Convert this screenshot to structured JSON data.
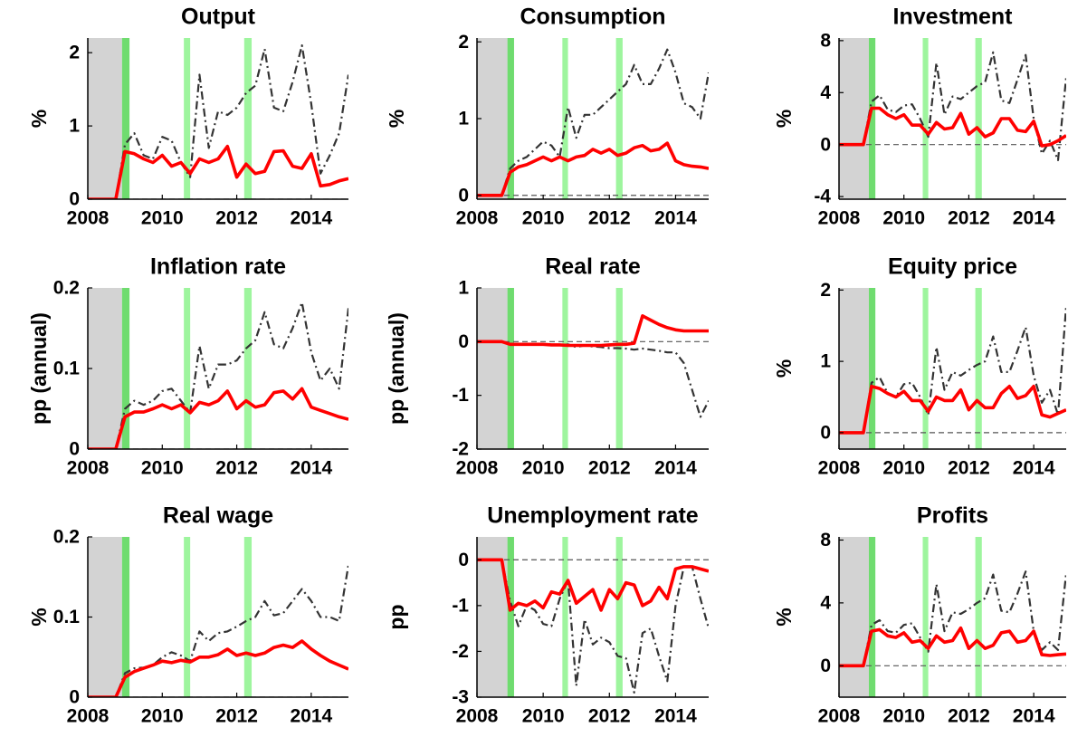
{
  "shaded": [
    {
      "from": 2008,
      "to": 2008.92,
      "color": "#d3d3d3"
    },
    {
      "from": 2008.92,
      "to": 2009.12,
      "color": "#6fdc6f"
    },
    {
      "from": 2010.58,
      "to": 2010.75,
      "color": "#9ef59e"
    },
    {
      "from": 2012.2,
      "to": 2012.4,
      "color": "#9ef59e"
    }
  ],
  "chart_data": [
    {
      "type": "line",
      "title": "Output",
      "ylabel": "%",
      "xlim": [
        2008,
        2015
      ],
      "xticks": [
        2008,
        2010,
        2012,
        2014
      ],
      "ylim": [
        0,
        2.2
      ],
      "yticks": [
        0,
        1,
        2
      ],
      "hline": 0,
      "x": [
        2008,
        2008.25,
        2008.5,
        2008.75,
        2009,
        2009.25,
        2009.5,
        2009.75,
        2010,
        2010.25,
        2010.5,
        2010.75,
        2011,
        2011.25,
        2011.5,
        2011.75,
        2012,
        2012.25,
        2012.5,
        2012.75,
        2013,
        2013.25,
        2013.5,
        2013.75,
        2014,
        2014.25,
        2014.5,
        2014.75,
        2015
      ],
      "series": [
        {
          "color": "#ff0000",
          "style": "solid",
          "values": [
            0,
            0,
            0,
            0,
            0.65,
            0.62,
            0.55,
            0.5,
            0.6,
            0.45,
            0.5,
            0.35,
            0.55,
            0.5,
            0.55,
            0.72,
            0.3,
            0.48,
            0.35,
            0.38,
            0.65,
            0.66,
            0.45,
            0.42,
            0.62,
            0.18,
            0.2,
            0.25,
            0.28
          ]
        },
        {
          "color": "#333333",
          "style": "dashdot",
          "values": [
            0,
            0,
            0,
            0,
            0.75,
            0.9,
            0.6,
            0.55,
            0.85,
            0.8,
            0.5,
            0.3,
            1.7,
            0.7,
            1.2,
            1.15,
            1.25,
            1.45,
            1.55,
            2.05,
            1.25,
            1.2,
            1.6,
            2.1,
            1.3,
            0.35,
            0.6,
            0.9,
            1.7
          ]
        }
      ]
    },
    {
      "type": "line",
      "title": "Consumption",
      "ylabel": "%",
      "xlim": [
        2008,
        2015
      ],
      "xticks": [
        2008,
        2010,
        2012,
        2014
      ],
      "ylim": [
        -0.05,
        2.05
      ],
      "yticks": [
        0,
        1,
        2
      ],
      "hline": 0,
      "x": [
        2008,
        2008.25,
        2008.5,
        2008.75,
        2009,
        2009.25,
        2009.5,
        2009.75,
        2010,
        2010.25,
        2010.5,
        2010.75,
        2011,
        2011.25,
        2011.5,
        2011.75,
        2012,
        2012.25,
        2012.5,
        2012.75,
        2013,
        2013.25,
        2013.5,
        2013.75,
        2014,
        2014.25,
        2014.5,
        2014.75,
        2015
      ],
      "series": [
        {
          "color": "#ff0000",
          "style": "solid",
          "values": [
            0,
            0,
            0,
            0,
            0.3,
            0.37,
            0.4,
            0.45,
            0.5,
            0.45,
            0.5,
            0.45,
            0.5,
            0.52,
            0.6,
            0.55,
            0.6,
            0.52,
            0.55,
            0.62,
            0.65,
            0.58,
            0.6,
            0.68,
            0.45,
            0.4,
            0.38,
            0.37,
            0.35
          ]
        },
        {
          "color": "#333333",
          "style": "dashdot",
          "values": [
            0,
            0,
            0,
            0,
            0.35,
            0.45,
            0.5,
            0.6,
            0.7,
            0.65,
            0.5,
            1.15,
            0.75,
            1.05,
            1.05,
            1.15,
            1.25,
            1.35,
            1.45,
            1.7,
            1.45,
            1.45,
            1.65,
            1.9,
            1.6,
            1.2,
            1.15,
            1.0,
            1.6
          ]
        }
      ]
    },
    {
      "type": "line",
      "title": "Investment",
      "ylabel": "%",
      "xlim": [
        2008,
        2015
      ],
      "xticks": [
        2008,
        2010,
        2012,
        2014
      ],
      "ylim": [
        -4.2,
        8.2
      ],
      "yticks": [
        -4,
        0,
        4,
        8
      ],
      "hline": 0,
      "x": [
        2008,
        2008.25,
        2008.5,
        2008.75,
        2009,
        2009.25,
        2009.5,
        2009.75,
        2010,
        2010.25,
        2010.5,
        2010.75,
        2011,
        2011.25,
        2011.5,
        2011.75,
        2012,
        2012.25,
        2012.5,
        2012.75,
        2013,
        2013.25,
        2013.5,
        2013.75,
        2014,
        2014.25,
        2014.5,
        2014.75,
        2015
      ],
      "series": [
        {
          "color": "#ff0000",
          "style": "solid",
          "values": [
            0,
            0,
            0,
            0,
            2.8,
            2.8,
            2.3,
            2.0,
            2.3,
            1.5,
            1.5,
            0.8,
            1.7,
            1.2,
            1.3,
            2.4,
            0.8,
            1.3,
            0.6,
            0.9,
            2.0,
            2.0,
            1.1,
            1.0,
            1.8,
            -0.1,
            0,
            0.3,
            0.7
          ]
        },
        {
          "color": "#333333",
          "style": "dashdot",
          "values": [
            0,
            0,
            0,
            0,
            3.3,
            3.8,
            2.7,
            2.5,
            3.0,
            3.1,
            2.0,
            0.6,
            6.3,
            2.3,
            3.7,
            3.5,
            4.0,
            4.5,
            4.8,
            7.1,
            3.4,
            3.2,
            5.0,
            6.9,
            2.0,
            -0.7,
            0.3,
            -1.2,
            5.2
          ]
        }
      ]
    },
    {
      "type": "line",
      "title": "Inflation rate",
      "ylabel": "pp (annual)",
      "xlim": [
        2008,
        2015
      ],
      "xticks": [
        2008,
        2010,
        2012,
        2014
      ],
      "ylim": [
        0,
        0.2
      ],
      "yticks": [
        0,
        0.1,
        0.2
      ],
      "hline": 0,
      "x": [
        2008,
        2008.25,
        2008.5,
        2008.75,
        2009,
        2009.25,
        2009.5,
        2009.75,
        2010,
        2010.25,
        2010.5,
        2010.75,
        2011,
        2011.25,
        2011.5,
        2011.75,
        2012,
        2012.25,
        2012.5,
        2012.75,
        2013,
        2013.25,
        2013.5,
        2013.75,
        2014,
        2014.25,
        2014.5,
        2014.75,
        2015
      ],
      "series": [
        {
          "color": "#ff0000",
          "style": "solid",
          "values": [
            0,
            0,
            0,
            0,
            0.04,
            0.046,
            0.046,
            0.05,
            0.055,
            0.05,
            0.055,
            0.045,
            0.058,
            0.055,
            0.06,
            0.072,
            0.05,
            0.06,
            0.052,
            0.055,
            0.07,
            0.072,
            0.062,
            0.075,
            0.052,
            0.048,
            0.044,
            0.04,
            0.037
          ]
        },
        {
          "color": "#333333",
          "style": "dashdot",
          "values": [
            0,
            0,
            0,
            0,
            0.05,
            0.06,
            0.055,
            0.06,
            0.072,
            0.075,
            0.06,
            0.045,
            0.128,
            0.075,
            0.105,
            0.105,
            0.11,
            0.125,
            0.135,
            0.17,
            0.13,
            0.125,
            0.15,
            0.182,
            0.12,
            0.085,
            0.1,
            0.075,
            0.175
          ]
        }
      ]
    },
    {
      "type": "line",
      "title": "Real rate",
      "ylabel": "pp (annual)",
      "xlim": [
        2008,
        2015
      ],
      "xticks": [
        2008,
        2010,
        2012,
        2014
      ],
      "ylim": [
        -2,
        1
      ],
      "yticks": [
        -2,
        -1,
        0,
        1
      ],
      "hline": 0,
      "x": [
        2008,
        2008.25,
        2008.5,
        2008.75,
        2009,
        2009.25,
        2009.5,
        2009.75,
        2010,
        2010.25,
        2010.5,
        2010.75,
        2011,
        2011.25,
        2011.5,
        2011.75,
        2012,
        2012.25,
        2012.5,
        2012.75,
        2013,
        2013.25,
        2013.5,
        2013.75,
        2014,
        2014.25,
        2014.5,
        2014.75,
        2015
      ],
      "series": [
        {
          "color": "#ff0000",
          "style": "solid",
          "values": [
            0,
            0,
            0,
            0,
            -0.05,
            -0.05,
            -0.05,
            -0.05,
            -0.05,
            -0.06,
            -0.06,
            -0.07,
            -0.07,
            -0.07,
            -0.07,
            -0.07,
            -0.06,
            -0.05,
            -0.05,
            -0.03,
            0.48,
            0.4,
            0.32,
            0.26,
            0.22,
            0.2,
            0.2,
            0.2,
            0.2
          ]
        },
        {
          "color": "#333333",
          "style": "dashdot",
          "values": [
            0,
            0,
            0,
            0,
            -0.05,
            -0.05,
            -0.06,
            -0.05,
            -0.06,
            -0.06,
            -0.07,
            -0.05,
            -0.1,
            -0.07,
            -0.09,
            -0.1,
            -0.12,
            -0.12,
            -0.13,
            -0.15,
            -0.13,
            -0.15,
            -0.17,
            -0.2,
            -0.2,
            -0.4,
            -0.9,
            -1.4,
            -1.1
          ]
        }
      ]
    },
    {
      "type": "line",
      "title": "Equity price",
      "ylabel": "%",
      "xlim": [
        2008,
        2015
      ],
      "xticks": [
        2008,
        2010,
        2012,
        2014
      ],
      "ylim": [
        -0.23,
        2.03
      ],
      "yticks": [
        0,
        1,
        2
      ],
      "hline": 0,
      "x": [
        2008,
        2008.25,
        2008.5,
        2008.75,
        2009,
        2009.25,
        2009.5,
        2009.75,
        2010,
        2010.25,
        2010.5,
        2010.75,
        2011,
        2011.25,
        2011.5,
        2011.75,
        2012,
        2012.25,
        2012.5,
        2012.75,
        2013,
        2013.25,
        2013.5,
        2013.75,
        2014,
        2014.25,
        2014.5,
        2014.75,
        2015
      ],
      "series": [
        {
          "color": "#ff0000",
          "style": "solid",
          "values": [
            0,
            0,
            0,
            0,
            0.65,
            0.62,
            0.55,
            0.5,
            0.58,
            0.45,
            0.45,
            0.3,
            0.5,
            0.45,
            0.45,
            0.6,
            0.32,
            0.45,
            0.35,
            0.35,
            0.55,
            0.65,
            0.48,
            0.52,
            0.65,
            0.25,
            0.22,
            0.27,
            0.32
          ]
        },
        {
          "color": "#333333",
          "style": "dashdot",
          "values": [
            0,
            0,
            0,
            0,
            0.7,
            0.78,
            0.55,
            0.5,
            0.68,
            0.7,
            0.5,
            0.25,
            1.2,
            0.6,
            0.85,
            0.8,
            0.88,
            0.95,
            1.0,
            1.35,
            0.85,
            0.85,
            1.15,
            1.48,
            0.8,
            0.42,
            0.6,
            0.25,
            1.78
          ]
        }
      ]
    },
    {
      "type": "line",
      "title": "Real wage",
      "ylabel": "%",
      "xlim": [
        2008,
        2015
      ],
      "xticks": [
        2008,
        2010,
        2012,
        2014
      ],
      "ylim": [
        0,
        0.2
      ],
      "yticks": [
        0,
        0.1,
        0.2
      ],
      "hline": 0,
      "x": [
        2008,
        2008.25,
        2008.5,
        2008.75,
        2009,
        2009.25,
        2009.5,
        2009.75,
        2010,
        2010.25,
        2010.5,
        2010.75,
        2011,
        2011.25,
        2011.5,
        2011.75,
        2012,
        2012.25,
        2012.5,
        2012.75,
        2013,
        2013.25,
        2013.5,
        2013.75,
        2014,
        2014.25,
        2014.5,
        2014.75,
        2015
      ],
      "series": [
        {
          "color": "#ff0000",
          "style": "solid",
          "values": [
            0,
            0,
            0,
            0,
            0.025,
            0.032,
            0.036,
            0.04,
            0.045,
            0.043,
            0.046,
            0.044,
            0.05,
            0.05,
            0.053,
            0.06,
            0.052,
            0.055,
            0.052,
            0.055,
            0.062,
            0.065,
            0.062,
            0.07,
            0.06,
            0.052,
            0.045,
            0.04,
            0.035
          ]
        },
        {
          "color": "#333333",
          "style": "dashdot",
          "values": [
            0,
            0,
            0,
            0,
            0.03,
            0.036,
            0.037,
            0.04,
            0.05,
            0.056,
            0.052,
            0.045,
            0.082,
            0.07,
            0.08,
            0.082,
            0.088,
            0.095,
            0.1,
            0.12,
            0.102,
            0.105,
            0.12,
            0.135,
            0.12,
            0.1,
            0.1,
            0.095,
            0.165
          ]
        }
      ]
    },
    {
      "type": "line",
      "title": "Unemployment rate",
      "ylabel": "pp",
      "xlim": [
        2008,
        2015
      ],
      "xticks": [
        2008,
        2010,
        2012,
        2014
      ],
      "ylim": [
        -3,
        0.5
      ],
      "yticks": [
        -3,
        -2,
        -1,
        0
      ],
      "hline": 0,
      "x": [
        2008,
        2008.25,
        2008.5,
        2008.75,
        2009,
        2009.25,
        2009.5,
        2009.75,
        2010,
        2010.25,
        2010.5,
        2010.75,
        2011,
        2011.25,
        2011.5,
        2011.75,
        2012,
        2012.25,
        2012.5,
        2012.75,
        2013,
        2013.25,
        2013.5,
        2013.75,
        2014,
        2014.25,
        2014.5,
        2014.75,
        2015
      ],
      "series": [
        {
          "color": "#ff0000",
          "style": "solid",
          "values": [
            0,
            0,
            0,
            0,
            -1.1,
            -0.95,
            -1.0,
            -0.9,
            -1.05,
            -0.7,
            -0.75,
            -0.45,
            -0.95,
            -0.8,
            -0.65,
            -1.1,
            -0.65,
            -0.85,
            -0.5,
            -0.55,
            -1.0,
            -0.9,
            -0.6,
            -0.85,
            -0.2,
            -0.15,
            -0.15,
            -0.2,
            -0.25
          ]
        },
        {
          "color": "#333333",
          "style": "dashdot",
          "values": [
            0,
            0,
            0,
            0,
            -0.9,
            -1.45,
            -1.0,
            -1.1,
            -1.4,
            -1.45,
            -0.85,
            -0.45,
            -2.75,
            -1.3,
            -1.85,
            -1.7,
            -1.8,
            -2.1,
            -2.15,
            -2.9,
            -1.6,
            -1.5,
            -2.1,
            -2.65,
            -1.0,
            -0.15,
            -0.15,
            -0.85,
            -1.5
          ]
        }
      ]
    },
    {
      "type": "line",
      "title": "Profits",
      "ylabel": "%",
      "xlim": [
        2008,
        2015
      ],
      "xticks": [
        2008,
        2010,
        2012,
        2014
      ],
      "ylim": [
        -2,
        8.2
      ],
      "yticks": [
        0,
        4,
        8
      ],
      "hline": 0,
      "x": [
        2008,
        2008.25,
        2008.5,
        2008.75,
        2009,
        2009.25,
        2009.5,
        2009.75,
        2010,
        2010.25,
        2010.5,
        2010.75,
        2011,
        2011.25,
        2011.5,
        2011.75,
        2012,
        2012.25,
        2012.5,
        2012.75,
        2013,
        2013.25,
        2013.5,
        2013.75,
        2014,
        2014.25,
        2014.5,
        2014.75,
        2015
      ],
      "series": [
        {
          "color": "#ff0000",
          "style": "solid",
          "values": [
            0,
            0,
            0,
            0,
            2.2,
            2.3,
            1.9,
            1.8,
            2.1,
            1.5,
            1.6,
            1.1,
            1.9,
            1.5,
            1.6,
            2.4,
            1.1,
            1.6,
            1.1,
            1.3,
            2.1,
            2.2,
            1.5,
            1.6,
            2.2,
            0.7,
            0.65,
            0.7,
            0.75
          ]
        },
        {
          "color": "#333333",
          "style": "dashdot",
          "values": [
            0,
            0,
            0,
            0,
            2.6,
            2.9,
            2.2,
            2.1,
            2.6,
            2.7,
            1.8,
            0.9,
            5.2,
            2.2,
            3.4,
            3.3,
            3.6,
            4.0,
            4.3,
            5.8,
            3.5,
            3.4,
            4.6,
            6.0,
            2.2,
            1.0,
            1.5,
            1.0,
            5.9
          ]
        }
      ]
    }
  ]
}
